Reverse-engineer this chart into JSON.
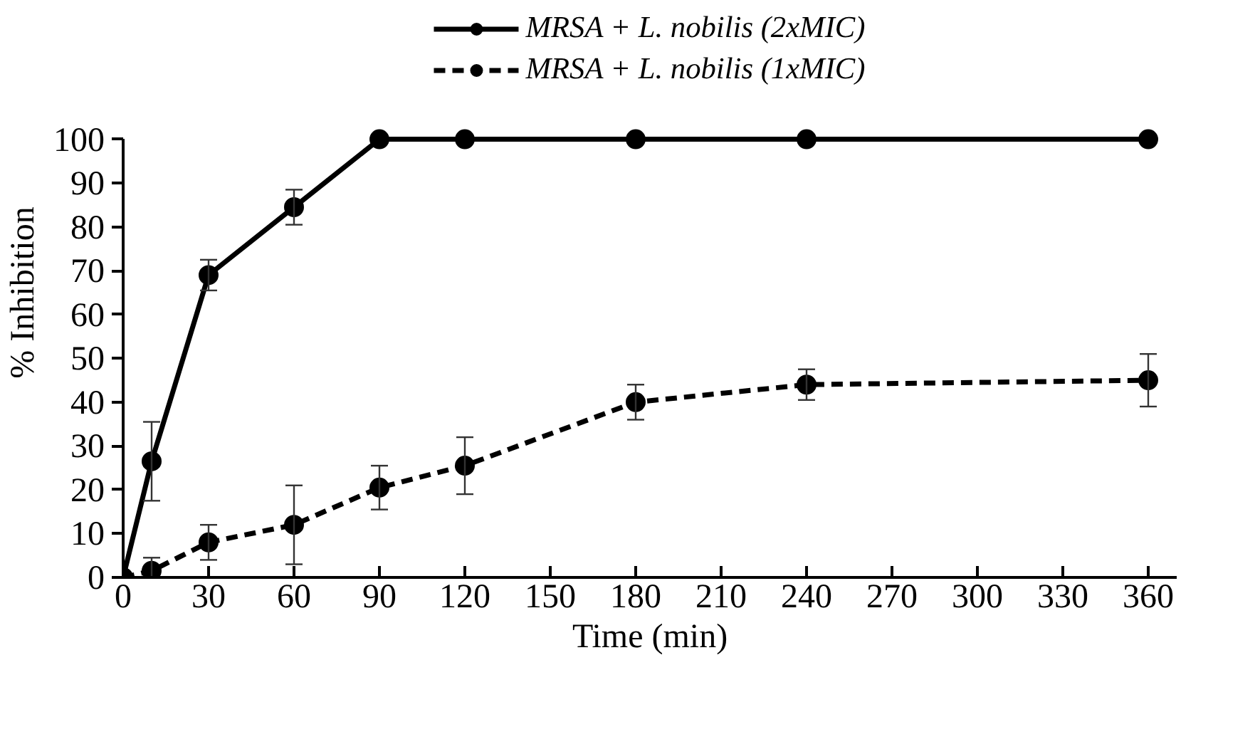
{
  "chart_data": {
    "type": "line",
    "xlabel": "Time (min)",
    "ylabel": "% Inhibition",
    "x": [
      0,
      10,
      30,
      60,
      90,
      120,
      180,
      240,
      360
    ],
    "series": [
      {
        "name": "MRSA + L. nobilis (2xMIC)",
        "color": "#000000",
        "line_style": "solid",
        "values": [
          0,
          26.5,
          69,
          84.5,
          100,
          100,
          100,
          100,
          100
        ],
        "errors": [
          null,
          9,
          3.5,
          4,
          null,
          null,
          null,
          null,
          null
        ]
      },
      {
        "name": "MRSA + L. nobilis (1xMIC)",
        "color": "#000000",
        "line_style": "dashed",
        "values": [
          0,
          1.5,
          8,
          12,
          20.5,
          25.5,
          40,
          44,
          45
        ],
        "errors": [
          null,
          3,
          4,
          9,
          5,
          6.5,
          4,
          3.5,
          6
        ]
      }
    ],
    "xlim": [
      0,
      370
    ],
    "ylim": [
      0,
      100
    ],
    "xticks": [
      0,
      30,
      60,
      90,
      120,
      150,
      180,
      210,
      240,
      270,
      300,
      330,
      360
    ],
    "yticks": [
      0,
      10,
      20,
      30,
      40,
      50,
      60,
      70,
      80,
      90,
      100
    ],
    "grid": false,
    "legend": "top",
    "marker": "circle"
  }
}
